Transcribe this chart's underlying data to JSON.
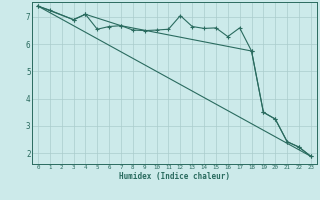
{
  "xlabel": "Humidex (Indice chaleur)",
  "bg_color": "#cceaea",
  "grid_color": "#aacccc",
  "line_color": "#2a6b5f",
  "xlim": [
    -0.5,
    23.5
  ],
  "ylim": [
    1.6,
    7.55
  ],
  "yticks": [
    2,
    3,
    4,
    5,
    6,
    7
  ],
  "xticks": [
    0,
    1,
    2,
    3,
    4,
    5,
    6,
    7,
    8,
    9,
    10,
    11,
    12,
    13,
    14,
    15,
    16,
    17,
    18,
    19,
    20,
    21,
    22,
    23
  ],
  "series1_x": [
    0,
    1,
    3,
    4,
    5,
    6,
    7,
    8,
    9,
    10,
    11,
    12,
    13,
    14,
    15,
    16,
    17,
    18,
    19,
    20,
    21,
    22,
    23
  ],
  "series1_y": [
    7.4,
    7.25,
    6.9,
    7.1,
    6.55,
    6.65,
    6.68,
    6.52,
    6.5,
    6.52,
    6.55,
    7.05,
    6.65,
    6.58,
    6.6,
    6.28,
    6.6,
    5.75,
    3.5,
    3.25,
    2.42,
    2.22,
    1.88
  ],
  "series2_x": [
    0,
    3,
    4,
    7,
    18,
    19,
    20,
    21,
    22,
    23
  ],
  "series2_y": [
    7.4,
    6.9,
    7.1,
    6.68,
    5.75,
    3.5,
    3.25,
    2.42,
    2.22,
    1.88
  ],
  "series3_x": [
    0,
    23
  ],
  "series3_y": [
    7.4,
    1.88
  ]
}
